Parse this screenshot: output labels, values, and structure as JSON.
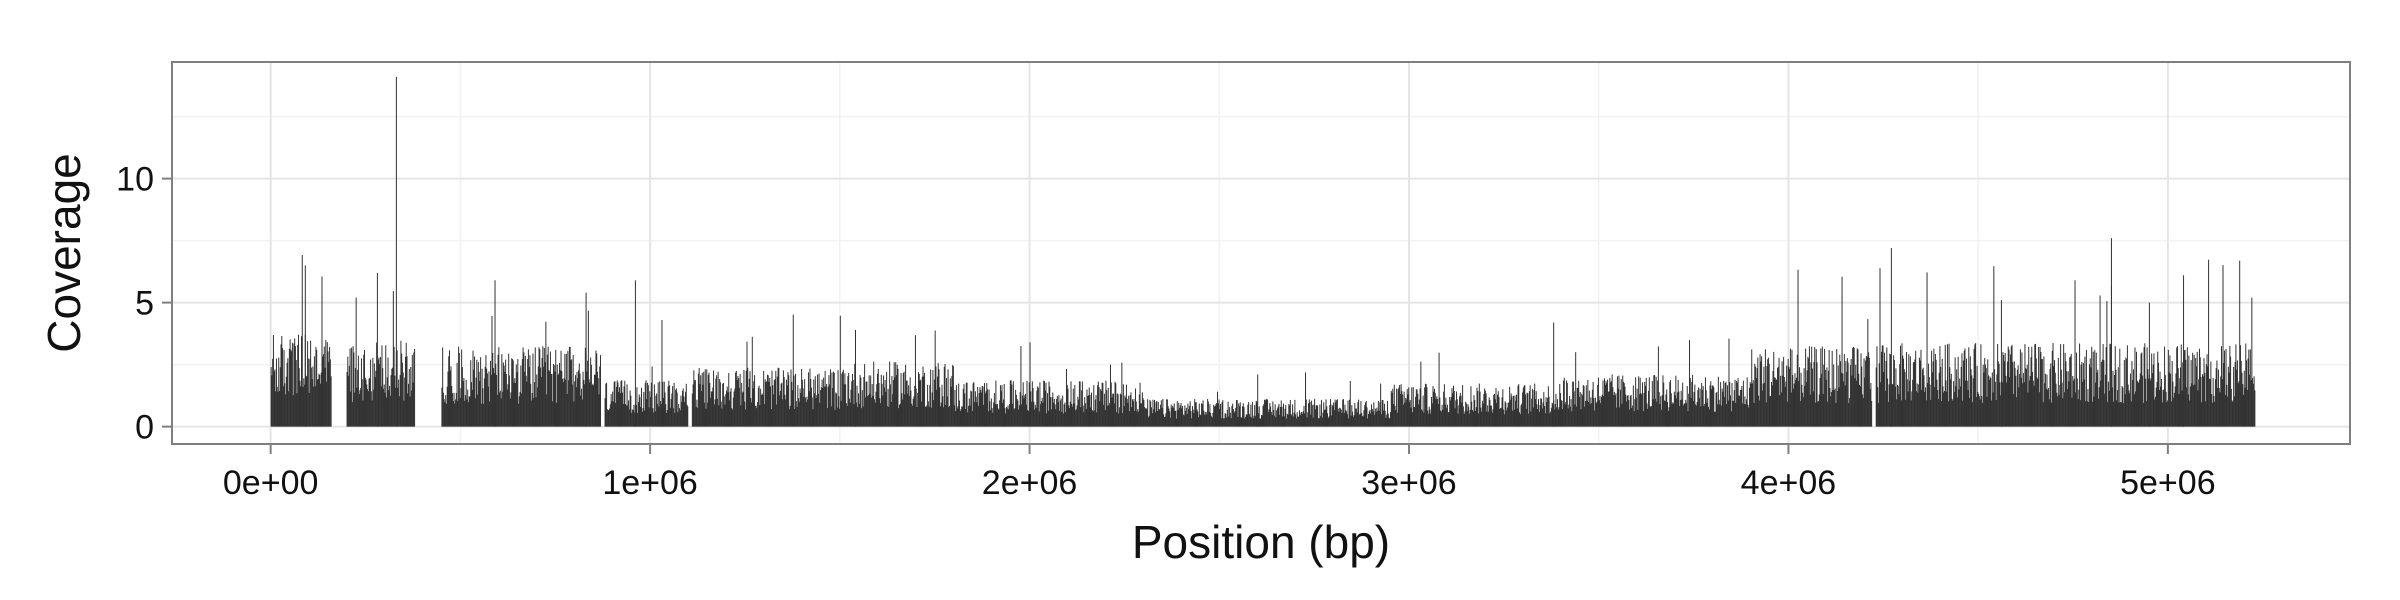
{
  "chart_data": {
    "type": "bar",
    "title": "",
    "xlabel": "Position (bp)",
    "ylabel": "Coverage",
    "xlim": [
      -260000,
      5480000
    ],
    "ylim": [
      -0.7,
      14.7
    ],
    "x_ticks": [
      {
        "value": 0,
        "label": "0e+00"
      },
      {
        "value": 1000000,
        "label": "1e+06"
      },
      {
        "value": 2000000,
        "label": "2e+06"
      },
      {
        "value": 3000000,
        "label": "3e+06"
      },
      {
        "value": 4000000,
        "label": "4e+06"
      },
      {
        "value": 5000000,
        "label": "5e+06"
      }
    ],
    "y_ticks": [
      {
        "value": 0,
        "label": "0"
      },
      {
        "value": 5,
        "label": "5"
      },
      {
        "value": 10,
        "label": "10"
      }
    ],
    "grid": true,
    "legend": "none",
    "bar_color": "#333333",
    "bin_width_bp": 2000,
    "segments": [
      {
        "start": 0,
        "end": 160000,
        "level": 3.0
      },
      {
        "start": 200000,
        "end": 380000,
        "level": 2.8
      },
      {
        "start": 450000,
        "end": 870000,
        "level": 2.6
      },
      {
        "start": 880000,
        "end": 1100000,
        "level": 1.5
      },
      {
        "start": 1110000,
        "end": 1500000,
        "level": 1.9
      },
      {
        "start": 1500000,
        "end": 1800000,
        "level": 2.1
      },
      {
        "start": 1800000,
        "end": 2300000,
        "level": 1.5
      },
      {
        "start": 2300000,
        "end": 2950000,
        "level": 0.9
      },
      {
        "start": 2950000,
        "end": 3400000,
        "level": 1.4
      },
      {
        "start": 3400000,
        "end": 3900000,
        "level": 1.7
      },
      {
        "start": 3900000,
        "end": 4220000,
        "level": 2.6
      },
      {
        "start": 4230000,
        "end": 5230000,
        "level": 2.7
      }
    ],
    "peaks": [
      {
        "x": 330000,
        "y": 14.1
      },
      {
        "x": 90000,
        "y": 6.5
      },
      {
        "x": 280000,
        "y": 6.2
      },
      {
        "x": 590000,
        "y": 5.9
      },
      {
        "x": 960000,
        "y": 5.9
      },
      {
        "x": 830000,
        "y": 5.4
      },
      {
        "x": 1030000,
        "y": 4.3
      },
      {
        "x": 1540000,
        "y": 3.9
      },
      {
        "x": 2000000,
        "y": 3.4
      },
      {
        "x": 2600000,
        "y": 2.1
      },
      {
        "x": 3380000,
        "y": 4.2
      },
      {
        "x": 4270000,
        "y": 7.2
      },
      {
        "x": 4850000,
        "y": 7.6
      },
      {
        "x": 5040000,
        "y": 6.1
      },
      {
        "x": 4950000,
        "y": 5.0
      },
      {
        "x": 5220000,
        "y": 5.2
      },
      {
        "x": 4560000,
        "y": 5.1
      }
    ]
  }
}
